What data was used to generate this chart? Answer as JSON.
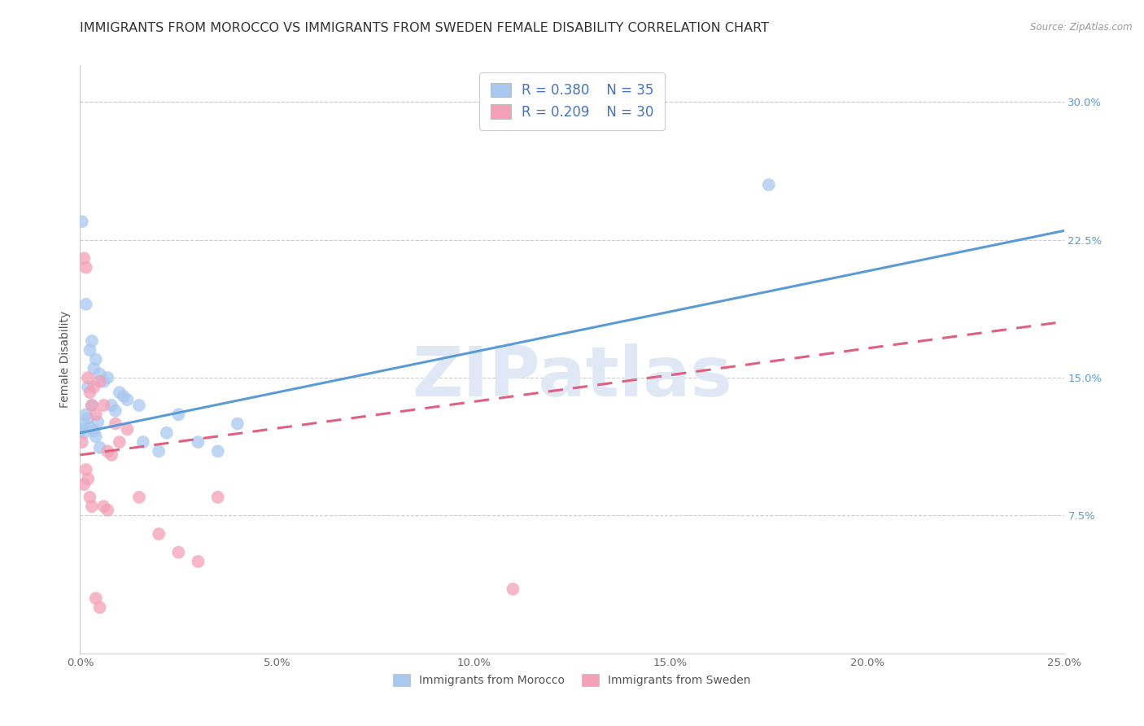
{
  "title": "IMMIGRANTS FROM MOROCCO VS IMMIGRANTS FROM SWEDEN FEMALE DISABILITY CORRELATION CHART",
  "source": "Source: ZipAtlas.com",
  "ylabel": "Female Disability",
  "x_tick_labels": [
    "0.0%",
    "5.0%",
    "10.0%",
    "15.0%",
    "20.0%",
    "25.0%"
  ],
  "x_tick_values": [
    0.0,
    5.0,
    10.0,
    15.0,
    20.0,
    25.0
  ],
  "y_tick_labels_right": [
    "7.5%",
    "15.0%",
    "22.5%",
    "30.0%"
  ],
  "y_tick_values_right": [
    7.5,
    15.0,
    22.5,
    30.0
  ],
  "xlim": [
    0.0,
    25.0
  ],
  "ylim": [
    0.0,
    32.0
  ],
  "morocco_label": "Immigrants from Morocco",
  "sweden_label": "Immigrants from Sweden",
  "morocco_color": "#A8C8F0",
  "sweden_color": "#F4A0B8",
  "morocco_line_color": "#5B9BD5",
  "sweden_line_color": "#E06080",
  "morocco_R": 0.38,
  "morocco_N": 35,
  "sweden_R": 0.209,
  "sweden_N": 30,
  "morocco_line_intercept": 12.0,
  "morocco_line_slope": 0.44,
  "sweden_line_intercept": 10.8,
  "sweden_line_slope": 0.29,
  "morocco_scatter_x": [
    0.05,
    0.1,
    0.15,
    0.2,
    0.25,
    0.3,
    0.35,
    0.4,
    0.5,
    0.6,
    0.7,
    0.8,
    0.9,
    1.0,
    1.1,
    1.2,
    1.5,
    1.6,
    2.0,
    2.2,
    2.5,
    3.0,
    3.5,
    4.0,
    0.05,
    0.1,
    0.15,
    0.2,
    0.25,
    0.3,
    0.35,
    0.4,
    0.45,
    0.5,
    17.5
  ],
  "morocco_scatter_y": [
    23.5,
    12.5,
    19.0,
    14.5,
    16.5,
    17.0,
    15.5,
    16.0,
    15.2,
    14.8,
    15.0,
    13.5,
    13.2,
    14.2,
    14.0,
    13.8,
    13.5,
    11.5,
    11.0,
    12.0,
    13.0,
    11.5,
    11.0,
    12.5,
    12.2,
    12.0,
    13.0,
    12.8,
    12.3,
    13.5,
    12.1,
    11.8,
    12.6,
    11.2,
    25.5
  ],
  "sweden_scatter_x": [
    0.05,
    0.1,
    0.15,
    0.2,
    0.25,
    0.3,
    0.35,
    0.4,
    0.5,
    0.6,
    0.7,
    0.8,
    0.9,
    1.0,
    1.2,
    1.5,
    2.0,
    2.5,
    3.0,
    0.1,
    0.15,
    0.2,
    0.25,
    0.3,
    0.4,
    0.5,
    0.6,
    0.7,
    3.5,
    11.0
  ],
  "sweden_scatter_y": [
    11.5,
    21.5,
    21.0,
    15.0,
    14.2,
    13.5,
    14.5,
    13.0,
    14.8,
    13.5,
    11.0,
    10.8,
    12.5,
    11.5,
    12.2,
    8.5,
    6.5,
    5.5,
    5.0,
    9.2,
    10.0,
    9.5,
    8.5,
    8.0,
    3.0,
    2.5,
    8.0,
    7.8,
    8.5,
    3.5
  ],
  "watermark_text": "ZIPatlas",
  "watermark_color": "#E0E8F5",
  "background_color": "#FFFFFF",
  "grid_color": "#CCCCCC",
  "title_fontsize": 11.5,
  "axis_label_fontsize": 10,
  "tick_fontsize": 9.5,
  "legend_fontsize": 12,
  "right_tick_color": "#5B9BD5"
}
